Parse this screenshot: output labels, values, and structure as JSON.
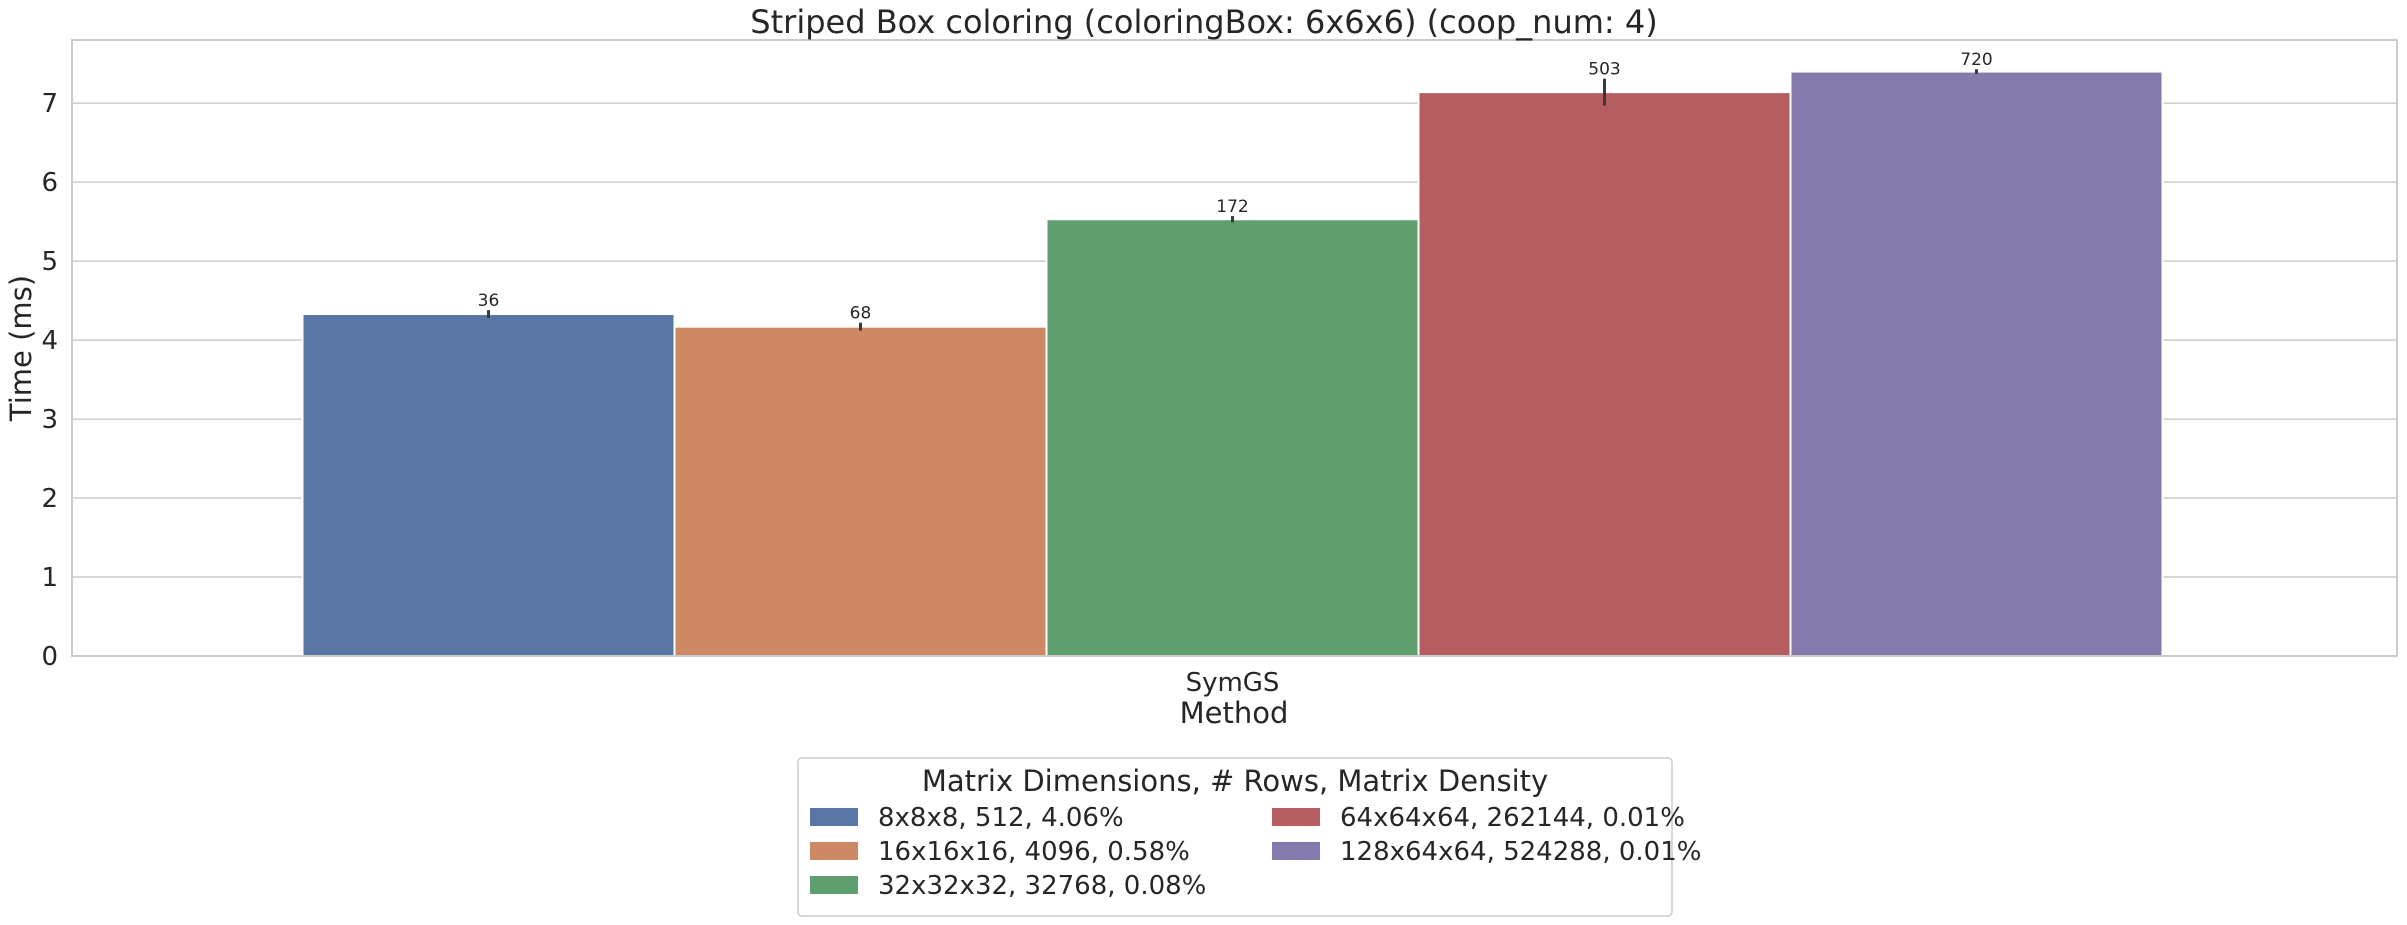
{
  "chart_data": {
    "type": "bar",
    "title": "Striped Box coloring (coloringBox: 6x6x6) (coop_num: 4)",
    "xlabel": "Method",
    "ylabel": "Time (ms)",
    "categories": [
      "SymGS"
    ],
    "ylim": [
      0,
      7.8
    ],
    "yticks": [
      0,
      1,
      2,
      3,
      4,
      5,
      6,
      7
    ],
    "grid": true,
    "legend": {
      "title": "Matrix Dimensions, # Rows, Matrix Density",
      "placement": "bottom-center"
    },
    "series": [
      {
        "name": "8x8x8, 512, 4.06%",
        "values": [
          4.33
        ],
        "error": [
          0.05
        ],
        "label": "36",
        "color": "#5875a4"
      },
      {
        "name": "16x16x16, 4096, 0.58%",
        "values": [
          4.17
        ],
        "error": [
          0.05
        ],
        "label": "68",
        "color": "#cc8963"
      },
      {
        "name": "32x32x32, 32768, 0.08%",
        "values": [
          5.53
        ],
        "error": [
          0.04
        ],
        "label": "172",
        "color": "#5f9e6e"
      },
      {
        "name": "64x64x64, 262144, 0.01%",
        "values": [
          7.14
        ],
        "error": [
          0.17
        ],
        "label": "503",
        "color": "#b55d60"
      },
      {
        "name": "128x64x64, 524288, 0.01%",
        "values": [
          7.4
        ],
        "error": [
          0.03
        ],
        "label": "720",
        "color": "#857aab"
      }
    ]
  }
}
